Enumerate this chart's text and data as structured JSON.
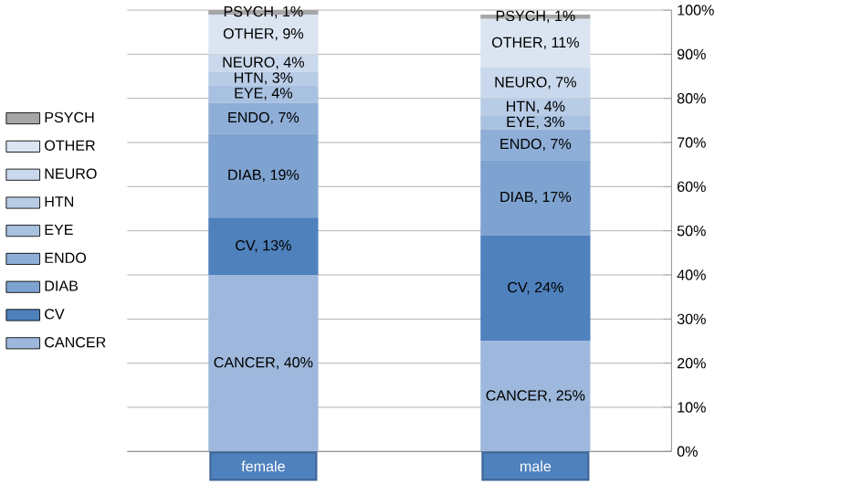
{
  "chart_data": {
    "type": "bar",
    "stacked": true,
    "categories": [
      "female",
      "male"
    ],
    "series": [
      {
        "name": "CANCER",
        "color": "#9db8dc",
        "values": [
          40,
          25
        ],
        "value_labels": [
          "CANCER, 40%",
          "CANCER, 25%"
        ]
      },
      {
        "name": "CV",
        "color": "#4f81bd",
        "values": [
          13,
          24
        ],
        "value_labels": [
          "CV, 13%",
          "CV, 24%"
        ]
      },
      {
        "name": "DIAB",
        "color": "#7fa3d0",
        "values": [
          19,
          17
        ],
        "value_labels": [
          "DIAB, 19%",
          "DIAB, 17%"
        ]
      },
      {
        "name": "ENDO",
        "color": "#8eaed7",
        "values": [
          7,
          7
        ],
        "value_labels": [
          "ENDO, 7%",
          "ENDO, 7%"
        ]
      },
      {
        "name": "EYE",
        "color": "#a9c1e0",
        "values": [
          4,
          3
        ],
        "value_labels": [
          "EYE, 4%",
          "EYE, 3%"
        ]
      },
      {
        "name": "HTN",
        "color": "#b8cce6",
        "values": [
          3,
          4
        ],
        "value_labels": [
          "HTN, 3%",
          "HTN, 4%"
        ]
      },
      {
        "name": "NEURO",
        "color": "#c9d8ec",
        "values": [
          4,
          7
        ],
        "value_labels": [
          "NEURO, 4%",
          "NEURO, 7%"
        ]
      },
      {
        "name": "OTHER",
        "color": "#dbe5f2",
        "values": [
          9,
          11
        ],
        "value_labels": [
          "OTHER, 9%",
          "OTHER, 11%"
        ]
      },
      {
        "name": "PSYCH",
        "color": "#a6a6a6",
        "values": [
          1,
          1
        ],
        "value_labels": [
          "PSYCH, 1%",
          "PSYCH, 1%"
        ]
      }
    ],
    "ylim": [
      0,
      100
    ],
    "yticks": [
      {
        "value": 0,
        "label": "0%"
      },
      {
        "value": 10,
        "label": "10%"
      },
      {
        "value": 20,
        "label": "20%"
      },
      {
        "value": 30,
        "label": "30%"
      },
      {
        "value": 40,
        "label": "40%"
      },
      {
        "value": 50,
        "label": "50%"
      },
      {
        "value": 60,
        "label": "60%"
      },
      {
        "value": 70,
        "label": "70%"
      },
      {
        "value": 80,
        "label": "80%"
      },
      {
        "value": 90,
        "label": "90%"
      },
      {
        "value": 100,
        "label": "100%"
      }
    ],
    "grid": "y",
    "legend": "left"
  }
}
